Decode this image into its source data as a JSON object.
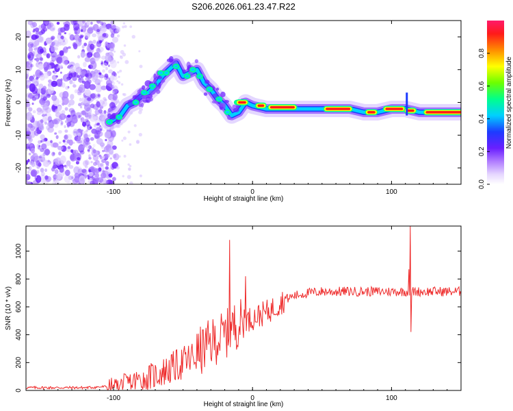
{
  "figure_title": "S206.2026.061.23.47.R22",
  "colors": {
    "snr_line": "#ee2a2a",
    "axis": "#000000"
  },
  "chart_data": [
    {
      "type": "heatmap",
      "title": "S206.2026.061.23.47.R22",
      "xlabel": "Height of straight line (km)",
      "ylabel": "Frequency (Hz)",
      "xlim": [
        -163,
        150
      ],
      "ylim": [
        -25,
        25
      ],
      "x_ticks": [
        -100,
        0,
        100
      ],
      "y_ticks": [
        -20,
        -10,
        0,
        10,
        20
      ],
      "colorbar": {
        "label": "Normalized spectral amplitude",
        "range": [
          0,
          1
        ],
        "ticks": [
          "0.0",
          "0.2",
          "0.4",
          "0.6",
          "0.8"
        ],
        "tick_values": [
          0.0,
          0.2,
          0.4,
          0.6,
          0.8
        ]
      },
      "ridge": {
        "description_points_x": [
          -103,
          -95,
          -90,
          -85,
          -80,
          -75,
          -70,
          -65,
          -60,
          -55,
          -50,
          -45,
          -40,
          -35,
          -30,
          -25,
          -20,
          -15,
          -10,
          -5,
          0,
          10,
          20,
          30,
          40,
          50,
          60,
          70,
          80,
          85,
          90,
          100,
          110,
          120,
          130,
          140,
          150
        ],
        "description_points_y": [
          -6,
          -4,
          -1,
          0,
          2,
          3,
          5,
          8,
          10,
          12,
          8,
          9,
          10,
          6,
          4,
          1,
          -1,
          -4,
          -3,
          0,
          -1,
          -2,
          -2,
          -2,
          -2,
          -2,
          -2,
          -2,
          -3,
          -3,
          -3,
          -2,
          -2,
          -3,
          -3,
          -3,
          -3
        ]
      }
    },
    {
      "type": "line",
      "title": "",
      "xlabel": "Height of straight line (km)",
      "ylabel": "SNR (10 * v/v)",
      "xlim": [
        -163,
        150
      ],
      "ylim": [
        0,
        1180
      ],
      "x_ticks": [
        -100,
        0,
        100
      ],
      "y_ticks": [
        0,
        200,
        400,
        600,
        800,
        1000
      ],
      "series": [
        {
          "name": "SNR",
          "x": [
            -163,
            -120,
            -100,
            -90,
            -80,
            -70,
            -60,
            -50,
            -45,
            -40,
            -35,
            -30,
            -25,
            -20,
            -17,
            -15,
            -12,
            -10,
            -5,
            0,
            5,
            10,
            15,
            20,
            25,
            30,
            40,
            50,
            60,
            70,
            80,
            90,
            100,
            110,
            113,
            114,
            115,
            120,
            130,
            140,
            150
          ],
          "values": [
            20,
            20,
            30,
            50,
            80,
            110,
            150,
            200,
            220,
            260,
            300,
            340,
            370,
            400,
            420,
            450,
            470,
            480,
            500,
            520,
            540,
            560,
            590,
            630,
            660,
            680,
            700,
            710,
            710,
            710,
            710,
            710,
            710,
            710,
            710,
            710,
            710,
            710,
            710,
            710,
            710
          ]
        }
      ],
      "spikes": [
        {
          "x": -16.5,
          "y": 1080
        },
        {
          "x": -5,
          "y": 820
        },
        {
          "x": 112.5,
          "y": 870
        },
        {
          "x": 113.5,
          "y": 1180
        },
        {
          "x": 114,
          "y": 420
        }
      ]
    }
  ]
}
